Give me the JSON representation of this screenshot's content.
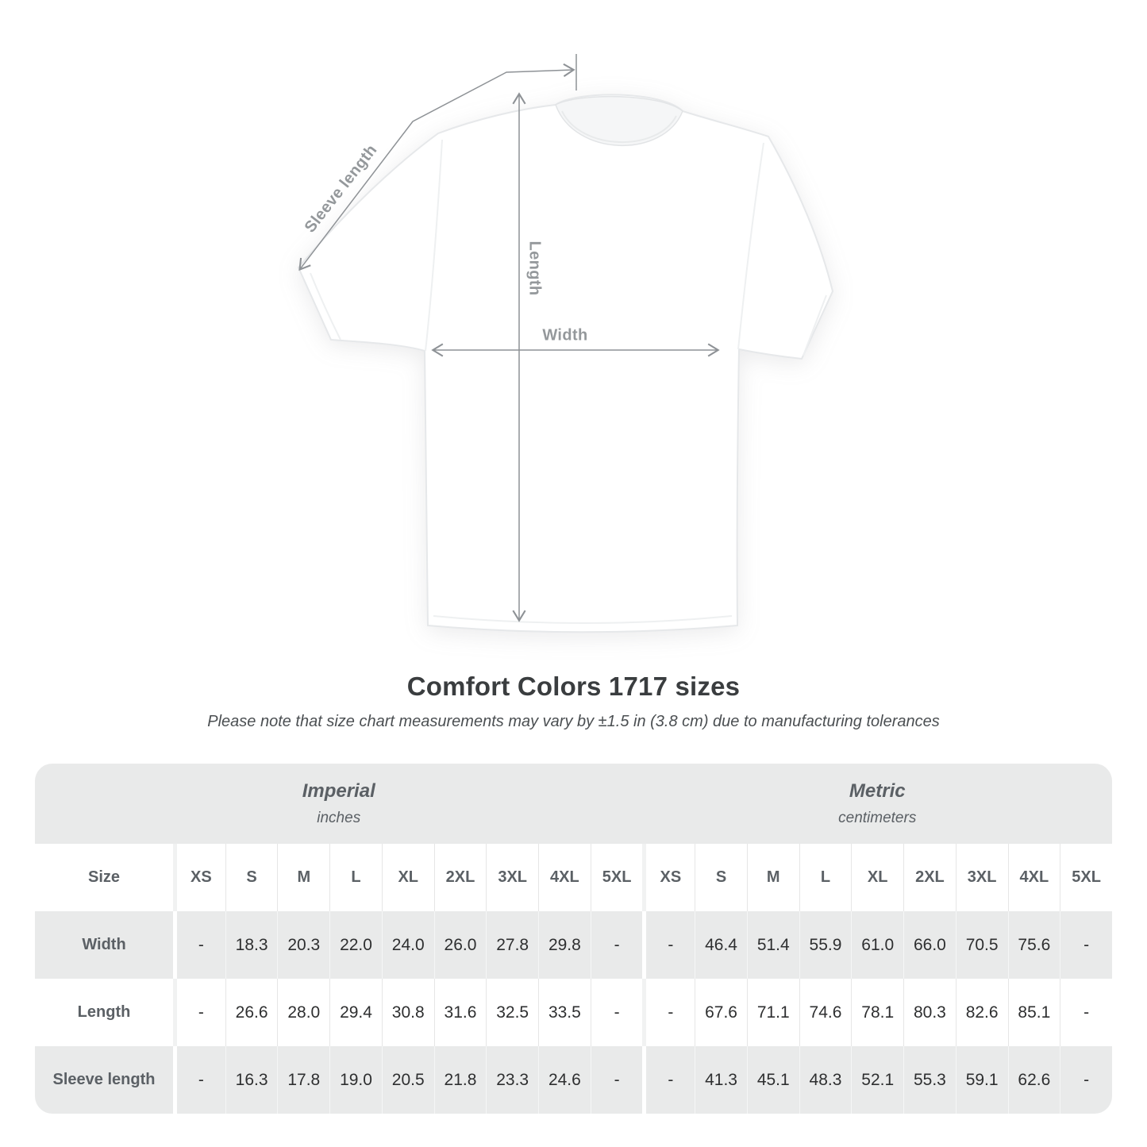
{
  "diagram": {
    "sleeve_length_label": "Sleeve length",
    "length_label": "Length",
    "width_label": "Width"
  },
  "heading": {
    "title": "Comfort Colors 1717 sizes",
    "subtitle": "Please note that size chart measurements may vary by ±1.5 in (3.8 cm) due to manufacturing tolerances"
  },
  "table": {
    "size_header": "Size",
    "groups": [
      {
        "label": "Imperial",
        "sublabel": "inches"
      },
      {
        "label": "Metric",
        "sublabel": "centimeters"
      }
    ],
    "sizes": [
      "XS",
      "S",
      "M",
      "L",
      "XL",
      "2XL",
      "3XL",
      "4XL",
      "5XL"
    ],
    "rows": [
      {
        "label": "Width",
        "imperial": [
          "-",
          "18.3",
          "20.3",
          "22.0",
          "24.0",
          "26.0",
          "27.8",
          "29.8",
          "-"
        ],
        "metric": [
          "-",
          "46.4",
          "51.4",
          "55.9",
          "61.0",
          "66.0",
          "70.5",
          "75.6",
          "-"
        ]
      },
      {
        "label": "Length",
        "imperial": [
          "-",
          "26.6",
          "28.0",
          "29.4",
          "30.8",
          "31.6",
          "32.5",
          "33.5",
          "-"
        ],
        "metric": [
          "-",
          "67.6",
          "71.1",
          "74.6",
          "78.1",
          "80.3",
          "82.6",
          "85.1",
          "-"
        ]
      },
      {
        "label": "Sleeve length",
        "imperial": [
          "-",
          "16.3",
          "17.8",
          "19.0",
          "20.5",
          "21.8",
          "23.3",
          "24.6",
          "-"
        ],
        "metric": [
          "-",
          "41.3",
          "45.1",
          "48.3",
          "52.1",
          "55.3",
          "59.1",
          "62.6",
          "-"
        ]
      }
    ]
  },
  "chart_data": {
    "type": "table",
    "title": "Comfort Colors 1717 sizes",
    "note": "Please note that size chart measurements may vary by ±1.5 in (3.8 cm) due to manufacturing tolerances",
    "column_groups": [
      "Imperial (inches)",
      "Metric (centimeters)"
    ],
    "categories": [
      "XS",
      "S",
      "M",
      "L",
      "XL",
      "2XL",
      "3XL",
      "4XL",
      "5XL"
    ],
    "series": [
      {
        "name": "Width (in)",
        "values": [
          null,
          18.3,
          20.3,
          22.0,
          24.0,
          26.0,
          27.8,
          29.8,
          null
        ]
      },
      {
        "name": "Length (in)",
        "values": [
          null,
          26.6,
          28.0,
          29.4,
          30.8,
          31.6,
          32.5,
          33.5,
          null
        ]
      },
      {
        "name": "Sleeve length (in)",
        "values": [
          null,
          16.3,
          17.8,
          19.0,
          20.5,
          21.8,
          23.3,
          24.6,
          null
        ]
      },
      {
        "name": "Width (cm)",
        "values": [
          null,
          46.4,
          51.4,
          55.9,
          61.0,
          66.0,
          70.5,
          75.6,
          null
        ]
      },
      {
        "name": "Length (cm)",
        "values": [
          null,
          67.6,
          71.1,
          74.6,
          78.1,
          80.3,
          82.6,
          85.1,
          null
        ]
      },
      {
        "name": "Sleeve length (cm)",
        "values": [
          null,
          41.3,
          45.1,
          48.3,
          52.1,
          55.3,
          59.1,
          62.6,
          null
        ]
      }
    ]
  },
  "colors": {
    "band_gray": "#e9eaea",
    "row_gray": "#e9eaea",
    "header_text": "#5b6065",
    "data_text": "#2e2f30",
    "arrow_gray": "#8e9296",
    "diagram_label_gray": "#94989b",
    "title_text": "#3a3d3f",
    "subtitle_text": "#4b4f52"
  }
}
